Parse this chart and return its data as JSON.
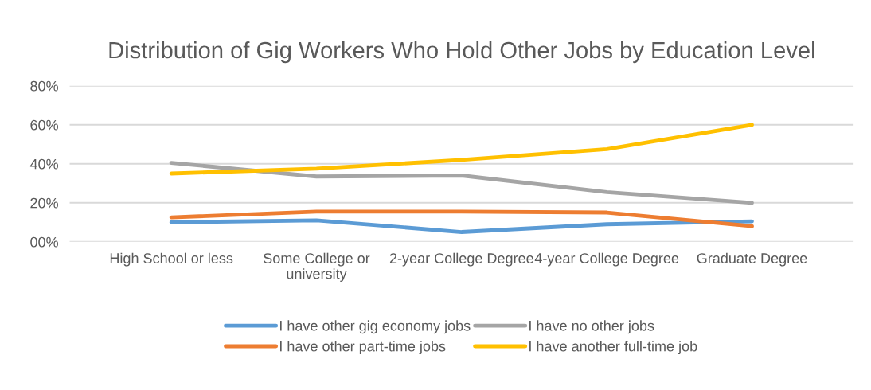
{
  "chart_data": {
    "type": "line",
    "title": "Distribution of Gig Workers Who Hold Other Jobs by Education Level",
    "categories": [
      "High School or less",
      "Some College or\nuniversity",
      "2-year College Degree",
      "4-year College Degree",
      "Graduate Degree"
    ],
    "series": [
      {
        "name": "I have other gig economy jobs",
        "color": "#5b9bd5",
        "values": [
          10,
          11,
          5,
          9,
          10.5
        ]
      },
      {
        "name": "I have other part-time jobs",
        "color": "#ed7d31",
        "values": [
          12.5,
          15.5,
          15.5,
          15,
          8
        ]
      },
      {
        "name": "I have no other jobs",
        "color": "#a5a5a5",
        "values": [
          40.5,
          33.5,
          34,
          25.5,
          20
        ]
      },
      {
        "name": "I have another full-time job",
        "color": "#ffc000",
        "values": [
          35,
          37.5,
          42,
          47.5,
          60
        ]
      }
    ],
    "ylim": [
      0,
      80
    ],
    "yticks": [
      {
        "value": 0,
        "label": "00%"
      },
      {
        "value": 20,
        "label": "20%"
      },
      {
        "value": 40,
        "label": "40%"
      },
      {
        "value": 60,
        "label": "60%"
      },
      {
        "value": 80,
        "label": "80%"
      }
    ],
    "grid": "y",
    "legend": "bottom",
    "marker": "none",
    "line_style": "solid"
  }
}
